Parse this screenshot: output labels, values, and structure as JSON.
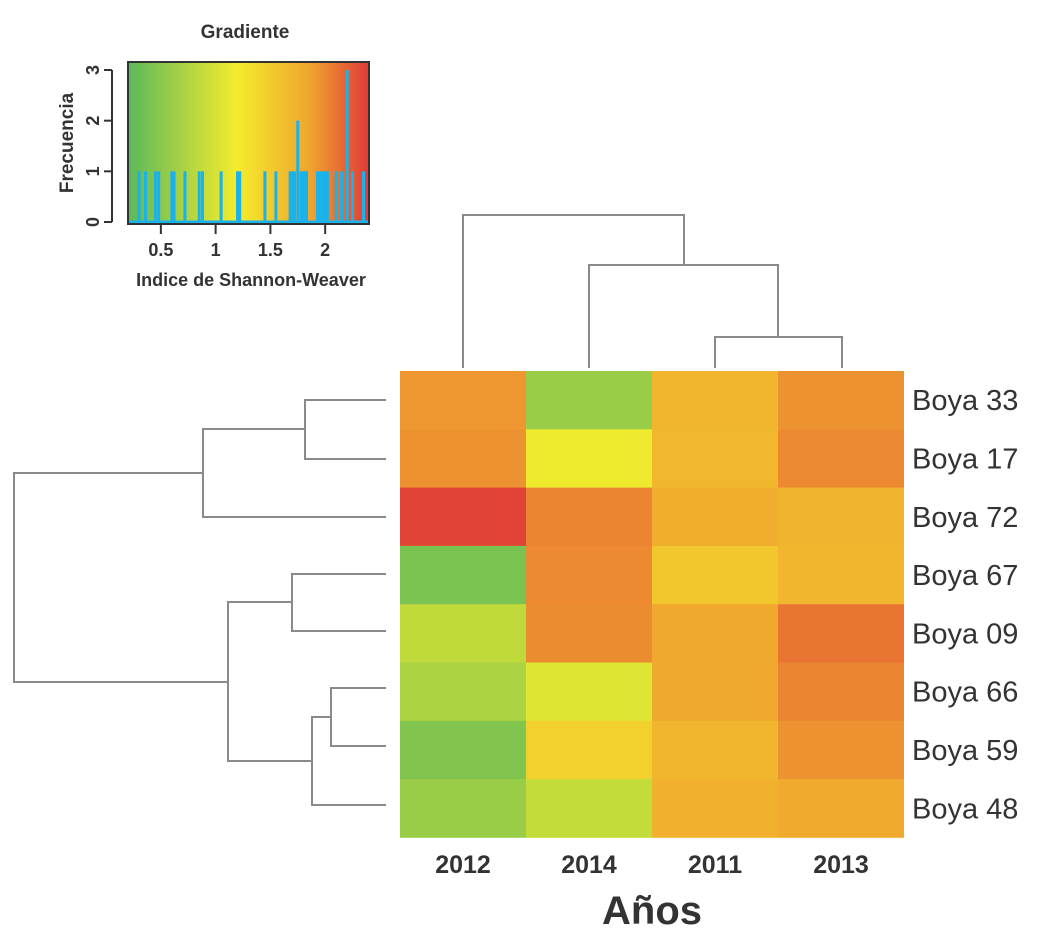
{
  "chart_data": [
    {
      "type": "heatmap",
      "xlabel": "Años",
      "columns": [
        "2012",
        "2014",
        "2011",
        "2013"
      ],
      "rows": [
        "Boya 33",
        "Boya 17",
        "Boya 72",
        "Boya 67",
        "Boya 09",
        "Boya 66",
        "Boya 59",
        "Boya 48"
      ],
      "values": [
        [
          1.93,
          0.6,
          1.7,
          1.95
        ],
        [
          1.95,
          1.15,
          1.68,
          2.0
        ],
        [
          2.35,
          2.02,
          1.78,
          1.72
        ],
        [
          0.4,
          2.0,
          1.55,
          1.7
        ],
        [
          0.85,
          1.98,
          1.82,
          2.1
        ],
        [
          0.72,
          1.05,
          1.83,
          2.02
        ],
        [
          0.45,
          1.45,
          1.7,
          1.95
        ],
        [
          0.6,
          0.88,
          1.75,
          1.8
        ]
      ],
      "color_scale": {
        "min": 0.2,
        "max": 2.4,
        "colors": [
          "#5cb85a",
          "#f4ec2c",
          "#f0a62e",
          "#e03a38"
        ]
      },
      "column_dendrogram": "((2012),((2014),((2011),(2013))))",
      "row_dendrogram": "(((Boya 33, Boya 17), Boya 72), ((Boya 67, Boya 09), ((Boya 66, Boya 59), Boya 48)))"
    },
    {
      "type": "histogram",
      "title": "Gradiente",
      "xlabel": "Indice de Shannon-Weaver",
      "ylabel": "Frecuencia",
      "xlim": [
        0.2,
        2.4
      ],
      "ylim": [
        0,
        3
      ],
      "x_ticks": [
        "0.5",
        "1",
        "1.5",
        "2"
      ],
      "y_ticks": [
        "0",
        "1",
        "2",
        "3"
      ],
      "trace_color": "#1ab2e8",
      "spikes": [
        {
          "x": 0.3,
          "y": 1
        },
        {
          "x": 0.36,
          "y": 1
        },
        {
          "x": 0.45,
          "y": 1
        },
        {
          "x": 0.48,
          "y": 1
        },
        {
          "x": 0.6,
          "y": 1
        },
        {
          "x": 0.62,
          "y": 1
        },
        {
          "x": 0.72,
          "y": 1
        },
        {
          "x": 0.85,
          "y": 1
        },
        {
          "x": 0.88,
          "y": 1
        },
        {
          "x": 1.05,
          "y": 1
        },
        {
          "x": 1.2,
          "y": 1
        },
        {
          "x": 1.22,
          "y": 1
        },
        {
          "x": 1.45,
          "y": 1
        },
        {
          "x": 1.55,
          "y": 1
        },
        {
          "x": 1.68,
          "y": 1
        },
        {
          "x": 1.7,
          "y": 1
        },
        {
          "x": 1.72,
          "y": 1
        },
        {
          "x": 1.75,
          "y": 2
        },
        {
          "x": 1.78,
          "y": 1
        },
        {
          "x": 1.8,
          "y": 1
        },
        {
          "x": 1.82,
          "y": 1
        },
        {
          "x": 1.83,
          "y": 1
        },
        {
          "x": 1.93,
          "y": 1
        },
        {
          "x": 1.95,
          "y": 1
        },
        {
          "x": 1.98,
          "y": 1
        },
        {
          "x": 2.0,
          "y": 1
        },
        {
          "x": 2.02,
          "y": 1
        },
        {
          "x": 2.1,
          "y": 1
        },
        {
          "x": 2.15,
          "y": 1
        },
        {
          "x": 2.2,
          "y": 3
        },
        {
          "x": 2.25,
          "y": 1
        },
        {
          "x": 2.35,
          "y": 1
        }
      ]
    }
  ]
}
